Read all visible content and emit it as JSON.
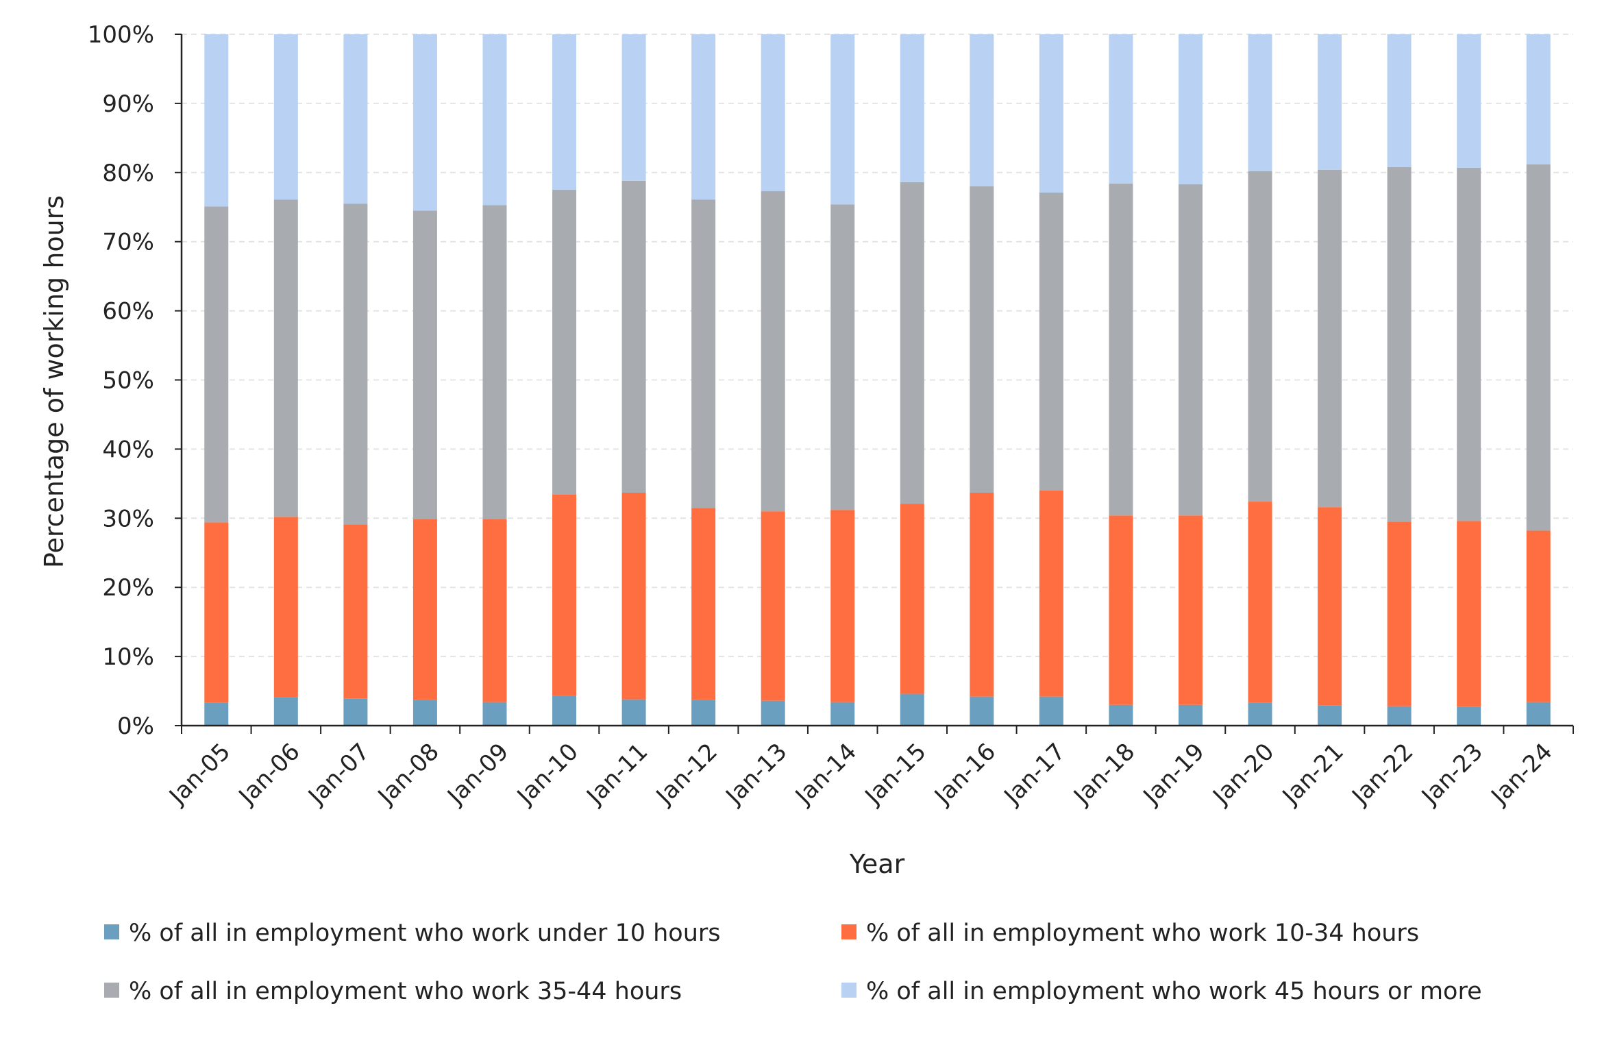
{
  "chart_data": {
    "type": "bar",
    "stacked": true,
    "percent_stacked": true,
    "xlabel": "Year",
    "ylabel": "Percentage of working hours",
    "ylim": [
      0,
      100
    ],
    "yticks": [
      "0%",
      "10%",
      "20%",
      "30%",
      "40%",
      "50%",
      "60%",
      "70%",
      "80%",
      "90%",
      "100%"
    ],
    "grid": "horizontal dashed",
    "legend_position": "bottom",
    "categories": [
      "Jan-05",
      "Jan-06",
      "Jan-07",
      "Jan-08",
      "Jan-09",
      "Jan-10",
      "Jan-11",
      "Jan-12",
      "Jan-13",
      "Jan-14",
      "Jan-15",
      "Jan-16",
      "Jan-17",
      "Jan-18",
      "Jan-19",
      "Jan-20",
      "Jan-21",
      "Jan-22",
      "Jan-23",
      "Jan-24"
    ],
    "series": [
      {
        "name": "% of all in employment who work under 10 hours",
        "color": "#6a9fbf",
        "values": [
          3.3,
          4.1,
          3.9,
          3.7,
          3.4,
          4.3,
          3.8,
          3.7,
          3.6,
          3.4,
          4.6,
          4.2,
          4.2,
          3.0,
          3.0,
          3.3,
          2.9,
          2.8,
          2.7,
          3.4
        ]
      },
      {
        "name": "% of all in employment who work 10-34 hours",
        "color": "#ff6e40",
        "values": [
          26.1,
          26.1,
          25.2,
          26.2,
          26.5,
          29.1,
          29.9,
          27.8,
          27.4,
          27.8,
          27.5,
          29.5,
          29.8,
          27.4,
          27.4,
          29.1,
          28.7,
          26.7,
          26.9,
          24.8
        ]
      },
      {
        "name": "% of all in employment who work 35-44 hours",
        "color": "#a8abb0",
        "values": [
          45.7,
          45.9,
          46.4,
          44.6,
          45.4,
          44.1,
          45.1,
          44.6,
          46.3,
          44.2,
          46.5,
          44.3,
          43.1,
          48.0,
          47.9,
          47.8,
          48.8,
          51.3,
          51.1,
          53.0
        ]
      },
      {
        "name": "% of all in employment who work 45 hours or more",
        "color": "#b9d1f2",
        "values": [
          24.9,
          23.9,
          24.5,
          25.5,
          24.7,
          22.5,
          21.2,
          23.9,
          22.7,
          24.6,
          21.4,
          22.0,
          22.9,
          21.6,
          21.7,
          19.8,
          19.6,
          19.2,
          19.3,
          18.8
        ]
      }
    ]
  }
}
